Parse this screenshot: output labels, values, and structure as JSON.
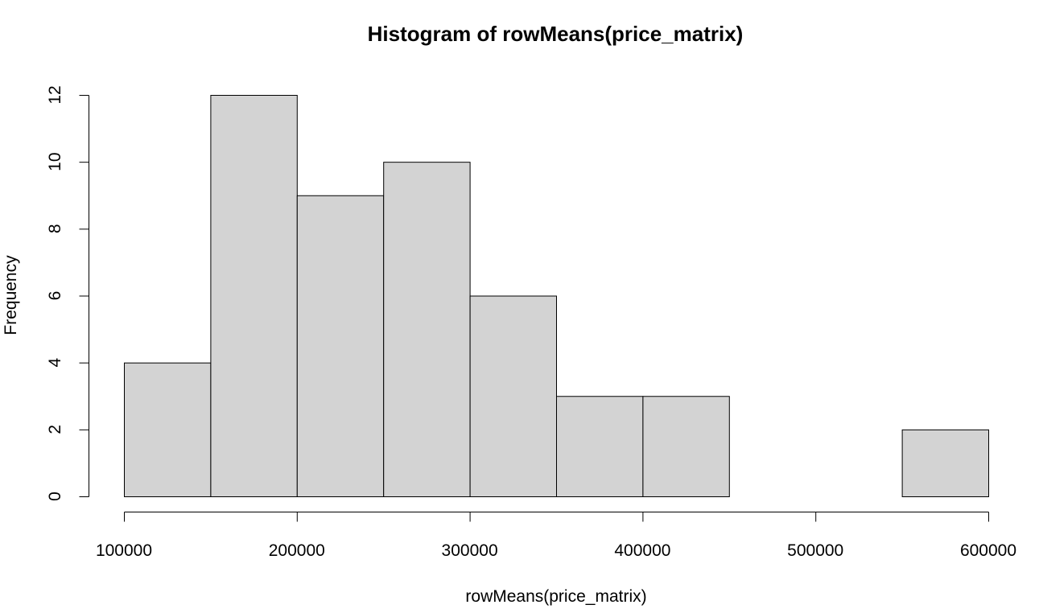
{
  "chart_data": {
    "type": "bar",
    "title": "Histogram of rowMeans(price_matrix)",
    "xlabel": "rowMeans(price_matrix)",
    "ylabel": "Frequency",
    "bins": [
      {
        "start": 100000,
        "end": 150000,
        "count": 4
      },
      {
        "start": 150000,
        "end": 200000,
        "count": 12
      },
      {
        "start": 200000,
        "end": 250000,
        "count": 9
      },
      {
        "start": 250000,
        "end": 300000,
        "count": 10
      },
      {
        "start": 300000,
        "end": 350000,
        "count": 6
      },
      {
        "start": 350000,
        "end": 400000,
        "count": 3
      },
      {
        "start": 400000,
        "end": 450000,
        "count": 3
      },
      {
        "start": 450000,
        "end": 500000,
        "count": 0
      },
      {
        "start": 500000,
        "end": 550000,
        "count": 0
      },
      {
        "start": 550000,
        "end": 600000,
        "count": 2
      }
    ],
    "xlim": [
      100000,
      600000
    ],
    "ylim": [
      0,
      12
    ],
    "x_ticks": [
      "100000",
      "200000",
      "300000",
      "400000",
      "500000",
      "600000"
    ],
    "y_ticks": [
      "0",
      "2",
      "4",
      "6",
      "8",
      "10",
      "12"
    ],
    "bar_color": "#d3d3d3",
    "grid": false,
    "legend": "none"
  }
}
